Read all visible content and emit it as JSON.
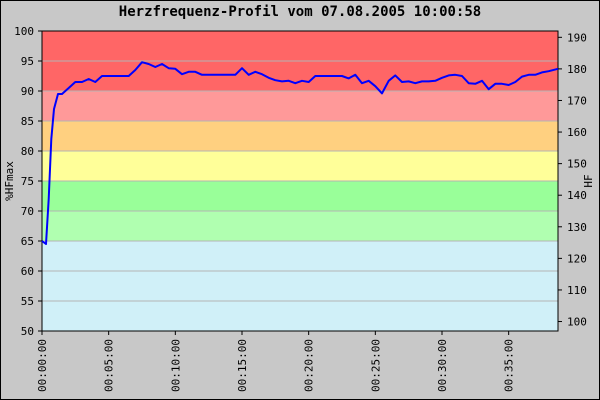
{
  "chart_data": {
    "type": "line",
    "title": "Herzfrequenz-Profil vom 07.08.2005 10:00:58",
    "ylabel_left": "%HFmax",
    "ylabel_right": "HF",
    "ylim_left": [
      50,
      100
    ],
    "ylim_right": [
      97,
      192
    ],
    "y_ticks_left": [
      "50",
      "55",
      "60",
      "65",
      "70",
      "75",
      "80",
      "85",
      "90",
      "95",
      "100"
    ],
    "y_ticks_right": [
      "100",
      "110",
      "120",
      "130",
      "140",
      "150",
      "160",
      "170",
      "180",
      "190"
    ],
    "x_tick_labels": [
      "00:00:00",
      "00:05:00",
      "00:10:00",
      "00:15:00",
      "00:20:00",
      "00:25:00",
      "00:30:00",
      "00:35:00"
    ],
    "xlim_minutes": [
      0,
      38.7
    ],
    "zones": [
      {
        "from": 50,
        "to": 65,
        "color": "#d0f0f8"
      },
      {
        "from": 65,
        "to": 70,
        "color": "#b0ffb0"
      },
      {
        "from": 70,
        "to": 75,
        "color": "#99ff99"
      },
      {
        "from": 75,
        "to": 80,
        "color": "#ffff99"
      },
      {
        "from": 80,
        "to": 85,
        "color": "#ffd080"
      },
      {
        "from": 85,
        "to": 90,
        "color": "#ff9999"
      },
      {
        "from": 90,
        "to": 100,
        "color": "#ff6666"
      }
    ],
    "line_color": "#0000ff",
    "series": [
      {
        "x_minutes": [
          0.0,
          0.3,
          0.5,
          0.7,
          0.9,
          1.2,
          1.5,
          2.0,
          2.5,
          3.0,
          3.5,
          4.0,
          4.5,
          5.0,
          5.5,
          6.0,
          6.5,
          7.0,
          7.5,
          8.0,
          8.5,
          9.0,
          9.5,
          10.0,
          10.5,
          11.0,
          11.5,
          12.0,
          12.5,
          13.0,
          13.5,
          14.0,
          14.5,
          15.0,
          15.5,
          16.0,
          16.5,
          17.0,
          17.5,
          18.0,
          18.5,
          19.0,
          19.5,
          20.0,
          20.5,
          21.0,
          21.5,
          22.0,
          22.5,
          23.0,
          23.5,
          24.0,
          24.5,
          25.0,
          25.5,
          26.0,
          26.5,
          27.0,
          27.5,
          28.0,
          28.5,
          29.0,
          29.5,
          30.0,
          30.5,
          31.0,
          31.5,
          32.0,
          32.5,
          33.0,
          33.5,
          34.0,
          34.5,
          35.0,
          35.5,
          36.0,
          36.5,
          37.0,
          37.5,
          38.0,
          38.7
        ],
        "values": [
          65,
          64.5,
          72,
          82,
          87,
          89.5,
          89.5,
          90.5,
          91.5,
          91.5,
          92,
          91.5,
          92.5,
          92.5,
          92.5,
          92.5,
          92.5,
          93.5,
          94.8,
          94.5,
          94,
          94.5,
          93.8,
          93.7,
          92.8,
          93.2,
          93.2,
          92.7,
          92.7,
          92.7,
          92.7,
          92.7,
          92.7,
          93.8,
          92.7,
          93.2,
          92.8,
          92.2,
          91.8,
          91.6,
          91.7,
          91.3,
          91.7,
          91.5,
          92.5,
          92.5,
          92.5,
          92.5,
          92.5,
          92.1,
          92.7,
          91.3,
          91.7,
          90.8,
          89.6,
          91.7,
          92.6,
          91.5,
          91.6,
          91.3,
          91.6,
          91.6,
          91.7,
          92.2,
          92.6,
          92.7,
          92.5,
          91.3,
          91.2,
          91.7,
          90.3,
          91.2,
          91.2,
          91.0,
          91.5,
          92.4,
          92.7,
          92.7,
          93.1,
          93.3,
          93.7
        ]
      }
    ]
  }
}
